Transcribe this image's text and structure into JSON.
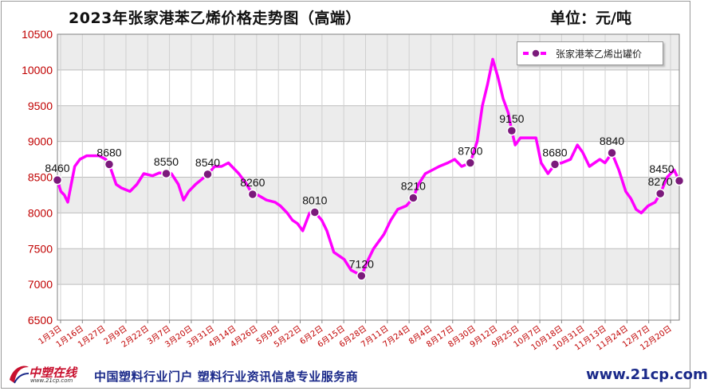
{
  "header": {
    "title": "2023年张家港苯乙烯价格走势图（高端）",
    "unit": "单位：元/吨"
  },
  "footer": {
    "logo_text": "中塑在线",
    "logo_sub": "www.21cp.com",
    "tagline": "中国塑料行业门户 塑料行业资讯信息专业服务商",
    "url": "www.21cp.com"
  },
  "colors": {
    "line": "#ff00ff",
    "marker": "#7b1a7b",
    "grid_band": "#ececec",
    "tick_label_x": "#c00000",
    "tick_label_y": "#c00000"
  },
  "chart_data": {
    "type": "line",
    "title": "2023年张家港苯乙烯价格走势图（高端）",
    "ylabel": "单位：元/吨",
    "ylim": [
      6500,
      10500
    ],
    "yticks": [
      6500,
      7000,
      7500,
      8000,
      8500,
      9000,
      9500,
      10000,
      10500
    ],
    "xlim": [
      "2023-01-03",
      "2023-12-29"
    ],
    "xtick_labels": [
      "1月3日",
      "1月16日",
      "1月27日",
      "2月9日",
      "2月22日",
      "3月7日",
      "3月20日",
      "3月31日",
      "4月14日",
      "4月26日",
      "5月9日",
      "5月22日",
      "6月2日",
      "6月15日",
      "6月28日",
      "7月11日",
      "7月24日",
      "8月4日",
      "8月17日",
      "8月30日",
      "9月12日",
      "9月25日",
      "10月7日",
      "10月18日",
      "10月31日",
      "11月13日",
      "11月24日",
      "12月7日",
      "12月20日"
    ],
    "grid": true,
    "legend_position": "top-right",
    "series": [
      {
        "name": "张家港苯乙烯出罐价",
        "points": [
          [
            "2023-01-03",
            8460
          ],
          [
            "2023-01-05",
            8300
          ],
          [
            "2023-01-07",
            8250
          ],
          [
            "2023-01-09",
            8150
          ],
          [
            "2023-01-11",
            8400
          ],
          [
            "2023-01-13",
            8650
          ],
          [
            "2023-01-16",
            8750
          ],
          [
            "2023-01-20",
            8800
          ],
          [
            "2023-01-27",
            8800
          ],
          [
            "2023-01-31",
            8750
          ],
          [
            "2023-02-02",
            8680
          ],
          [
            "2023-02-06",
            8400
          ],
          [
            "2023-02-09",
            8350
          ],
          [
            "2023-02-14",
            8300
          ],
          [
            "2023-02-18",
            8400
          ],
          [
            "2023-02-22",
            8550
          ],
          [
            "2023-02-27",
            8520
          ],
          [
            "2023-03-03",
            8560
          ],
          [
            "2023-03-07",
            8550
          ],
          [
            "2023-03-10",
            8550
          ],
          [
            "2023-03-14",
            8400
          ],
          [
            "2023-03-17",
            8180
          ],
          [
            "2023-03-20",
            8300
          ],
          [
            "2023-03-24",
            8400
          ],
          [
            "2023-03-28",
            8480
          ],
          [
            "2023-03-31",
            8540
          ],
          [
            "2023-04-04",
            8650
          ],
          [
            "2023-04-08",
            8650
          ],
          [
            "2023-04-12",
            8700
          ],
          [
            "2023-04-14",
            8650
          ],
          [
            "2023-04-18",
            8550
          ],
          [
            "2023-04-22",
            8420
          ],
          [
            "2023-04-26",
            8260
          ],
          [
            "2023-04-29",
            8250
          ],
          [
            "2023-05-04",
            8180
          ],
          [
            "2023-05-09",
            8150
          ],
          [
            "2023-05-12",
            8100
          ],
          [
            "2023-05-16",
            8000
          ],
          [
            "2023-05-19",
            7900
          ],
          [
            "2023-05-22",
            7850
          ],
          [
            "2023-05-25",
            7750
          ],
          [
            "2023-05-29",
            8000
          ],
          [
            "2023-06-01",
            8010
          ],
          [
            "2023-06-05",
            7900
          ],
          [
            "2023-06-08",
            7750
          ],
          [
            "2023-06-12",
            7450
          ],
          [
            "2023-06-15",
            7400
          ],
          [
            "2023-06-18",
            7350
          ],
          [
            "2023-06-22",
            7200
          ],
          [
            "2023-06-26",
            7150
          ],
          [
            "2023-06-28",
            7120
          ],
          [
            "2023-07-01",
            7300
          ],
          [
            "2023-07-05",
            7500
          ],
          [
            "2023-07-08",
            7600
          ],
          [
            "2023-07-11",
            7700
          ],
          [
            "2023-07-15",
            7900
          ],
          [
            "2023-07-19",
            8050
          ],
          [
            "2023-07-24",
            8100
          ],
          [
            "2023-07-28",
            8210
          ],
          [
            "2023-07-31",
            8400
          ],
          [
            "2023-08-04",
            8550
          ],
          [
            "2023-08-08",
            8600
          ],
          [
            "2023-08-12",
            8650
          ],
          [
            "2023-08-17",
            8700
          ],
          [
            "2023-08-21",
            8750
          ],
          [
            "2023-08-25",
            8650
          ],
          [
            "2023-08-30",
            8700
          ],
          [
            "2023-09-03",
            9000
          ],
          [
            "2023-09-06",
            9500
          ],
          [
            "2023-09-09",
            9800
          ],
          [
            "2023-09-12",
            10150
          ],
          [
            "2023-09-15",
            9900
          ],
          [
            "2023-09-18",
            9600
          ],
          [
            "2023-09-21",
            9400
          ],
          [
            "2023-09-23",
            9150
          ],
          [
            "2023-09-25",
            8950
          ],
          [
            "2023-09-28",
            9050
          ],
          [
            "2023-10-07",
            9050
          ],
          [
            "2023-10-10",
            8700
          ],
          [
            "2023-10-14",
            8550
          ],
          [
            "2023-10-18",
            8680
          ],
          [
            "2023-10-22",
            8700
          ],
          [
            "2023-10-27",
            8750
          ],
          [
            "2023-10-31",
            8950
          ],
          [
            "2023-11-03",
            8850
          ],
          [
            "2023-11-07",
            8650
          ],
          [
            "2023-11-10",
            8700
          ],
          [
            "2023-11-13",
            8750
          ],
          [
            "2023-11-16",
            8700
          ],
          [
            "2023-11-20",
            8840
          ],
          [
            "2023-11-24",
            8600
          ],
          [
            "2023-11-28",
            8300
          ],
          [
            "2023-12-01",
            8200
          ],
          [
            "2023-12-04",
            8050
          ],
          [
            "2023-12-07",
            8000
          ],
          [
            "2023-12-11",
            8100
          ],
          [
            "2023-12-15",
            8150
          ],
          [
            "2023-12-18",
            8270
          ],
          [
            "2023-12-22",
            8500
          ],
          [
            "2023-12-26",
            8600
          ],
          [
            "2023-12-29",
            8450
          ]
        ],
        "data_labels": [
          [
            "2023-01-03",
            8460
          ],
          [
            "2023-02-02",
            8680
          ],
          [
            "2023-03-07",
            8550
          ],
          [
            "2023-03-31",
            8540
          ],
          [
            "2023-04-26",
            8260
          ],
          [
            "2023-06-01",
            8010
          ],
          [
            "2023-06-28",
            7120
          ],
          [
            "2023-07-28",
            8210
          ],
          [
            "2023-08-30",
            8700
          ],
          [
            "2023-09-23",
            9150
          ],
          [
            "2023-10-18",
            8680
          ],
          [
            "2023-11-20",
            8840
          ],
          [
            "2023-12-18",
            8270
          ],
          [
            "2023-12-29",
            8450
          ]
        ]
      }
    ]
  }
}
